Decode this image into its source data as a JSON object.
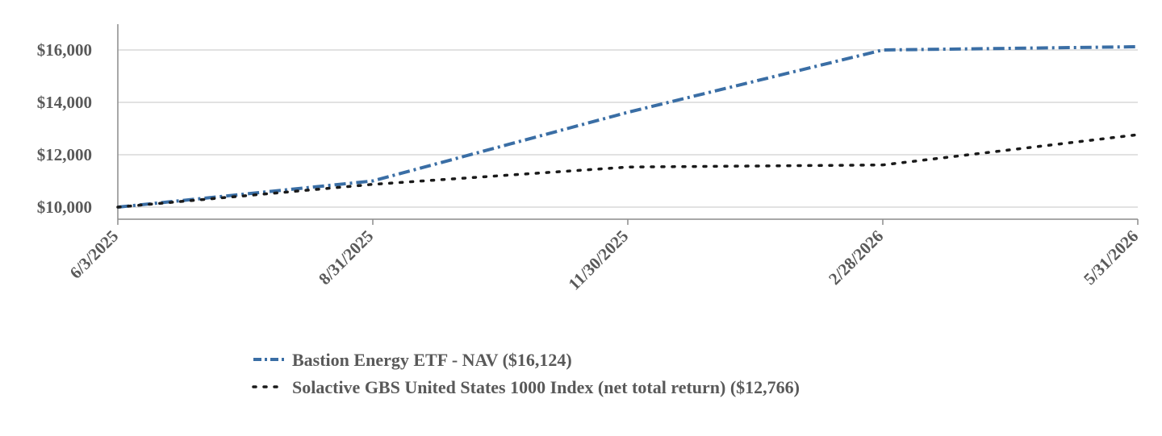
{
  "chart_data": {
    "type": "line",
    "x": [
      "6/3/2025",
      "8/31/2025",
      "11/30/2025",
      "2/28/2026",
      "5/31/2026"
    ],
    "series": [
      {
        "name": "Bastion Energy ETF - NAV ($16,124)",
        "values": [
          10000,
          11000,
          13620,
          16000,
          16124
        ],
        "color": "#3a6ea5",
        "style": "dash-dot"
      },
      {
        "name": "Solactive GBS United States 1000 Index (net total return) ($12,766)",
        "values": [
          10000,
          10870,
          11530,
          11610,
          12766
        ],
        "color": "#1a1a1a",
        "style": "dotted"
      }
    ],
    "yticks": [
      10000,
      12000,
      14000,
      16000
    ],
    "ytick_labels": [
      "$10,000",
      "$12,000",
      "$14,000",
      "$16,000"
    ],
    "ylim": [
      9500,
      17000
    ],
    "grid": true,
    "legend_position": "bottom-center"
  }
}
